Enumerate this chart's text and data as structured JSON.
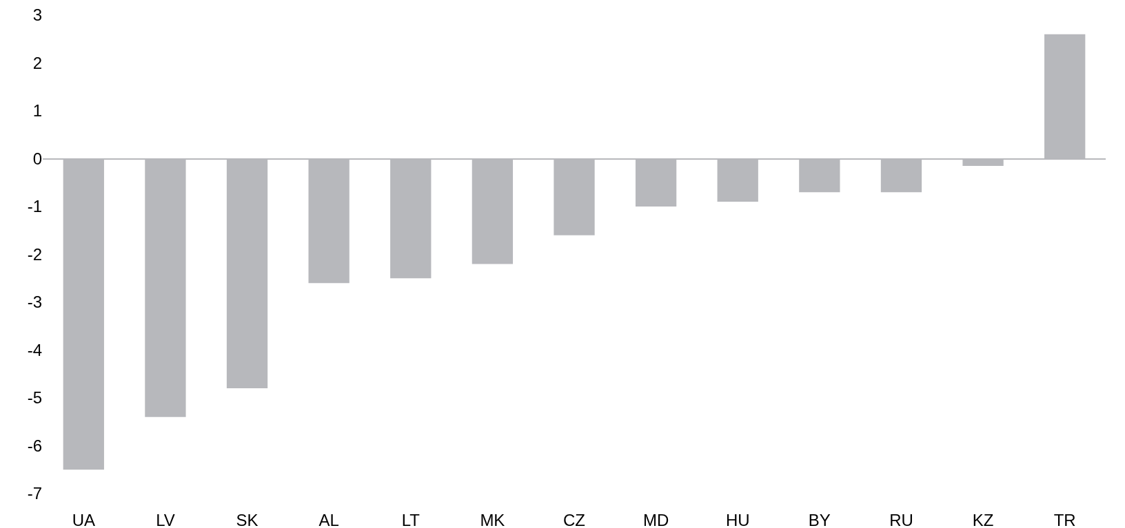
{
  "chart_data": {
    "type": "bar",
    "categories": [
      "UA",
      "LV",
      "SK",
      "AL",
      "LT",
      "MK",
      "CZ",
      "MD",
      "HU",
      "BY",
      "RU",
      "KZ",
      "TR"
    ],
    "values": [
      -6.5,
      -5.4,
      -4.8,
      -2.6,
      -2.5,
      -2.2,
      -1.6,
      -1.0,
      -0.9,
      -0.7,
      -0.7,
      -0.15,
      2.6
    ],
    "color": "#b7b8bc",
    "yticks": [
      -7,
      -6,
      -5,
      -4,
      -3,
      -2,
      -1,
      0,
      1,
      2,
      3
    ],
    "ylim": [
      -7,
      3
    ]
  }
}
